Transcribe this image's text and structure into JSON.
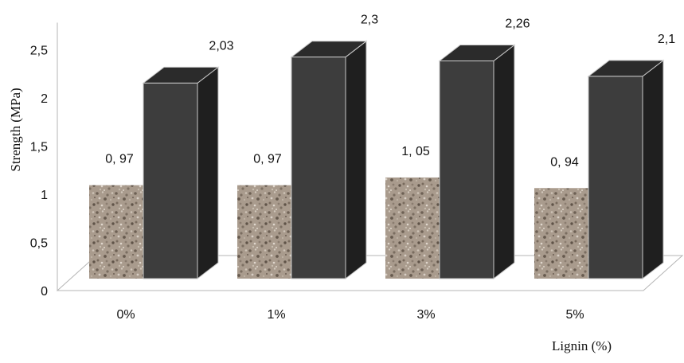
{
  "chart_data": {
    "type": "bar",
    "style": "3d-clustered",
    "categories": [
      "0%",
      "1%",
      "3%",
      "5%"
    ],
    "series": [
      {
        "values": [
          0.97,
          0.97,
          1.05,
          0.94
        ],
        "labels": [
          "0, 97",
          "0, 97",
          "1, 05",
          "0, 94"
        ],
        "fill": "speckled-texture",
        "color": "#a89a8c"
      },
      {
        "values": [
          2.03,
          2.3,
          2.26,
          2.1
        ],
        "labels": [
          "2,03",
          "2,3",
          "2,26",
          "2,1"
        ],
        "fill": "solid",
        "color": "#3d3d3d"
      }
    ],
    "yticks": [
      "0",
      "0,5",
      "1",
      "1,5",
      "2",
      "2,5"
    ],
    "ylim": [
      0,
      2.5
    ],
    "ylabel": "Strength (MPa)",
    "xlabel": "Lignin (%)",
    "grid": false,
    "legend": "none"
  }
}
